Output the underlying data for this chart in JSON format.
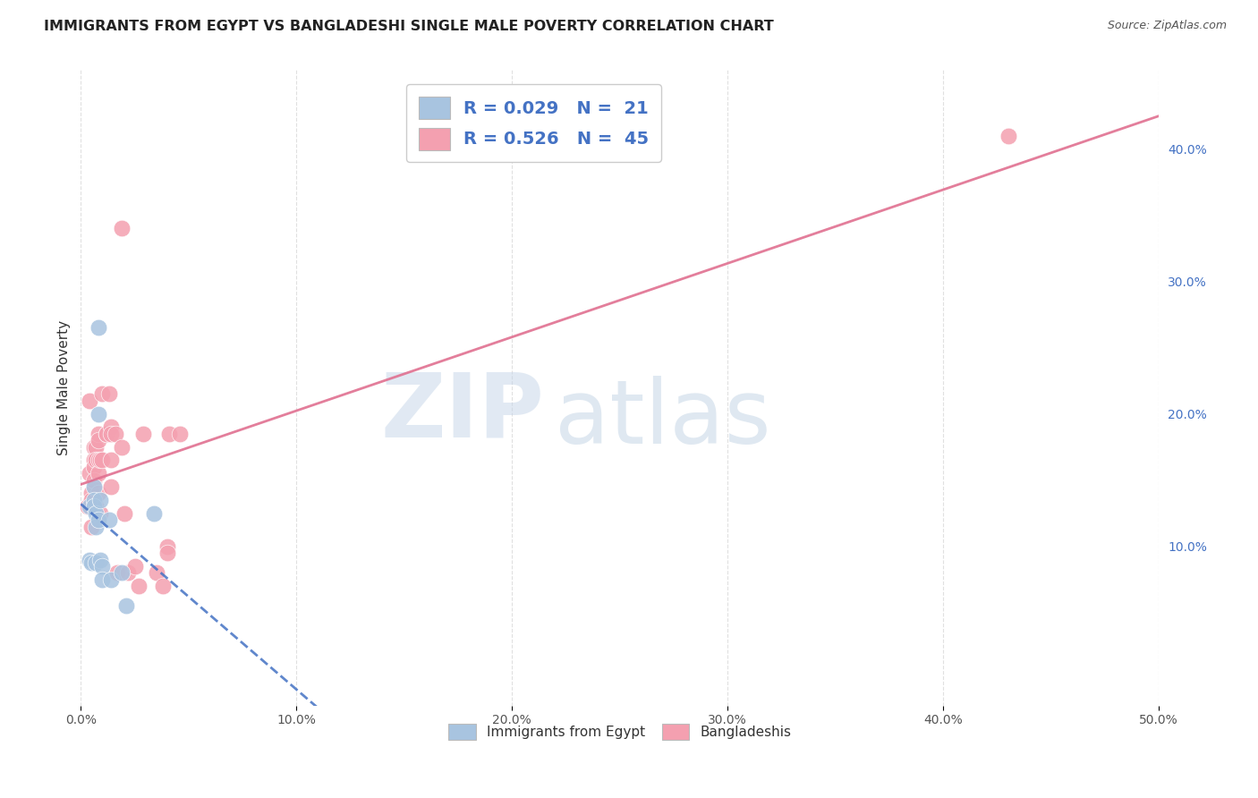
{
  "title": "IMMIGRANTS FROM EGYPT VS BANGLADESHI SINGLE MALE POVERTY CORRELATION CHART",
  "source": "Source: ZipAtlas.com",
  "ylabel": "Single Male Poverty",
  "xlim": [
    0.0,
    50.0
  ],
  "ylim": [
    -2.0,
    46.0
  ],
  "xticks": [
    0.0,
    10.0,
    20.0,
    30.0,
    40.0,
    50.0
  ],
  "xticklabels": [
    "0.0%",
    "10.0%",
    "20.0%",
    "30.0%",
    "40.0%",
    "50.0%"
  ],
  "yticks_right": [
    0.0,
    10.0,
    20.0,
    30.0,
    40.0
  ],
  "yticklabels_right": [
    "",
    "10.0%",
    "20.0%",
    "30.0%",
    "40.0%"
  ],
  "egypt_color": "#a8c4e0",
  "bangladesh_color": "#f4a0b0",
  "egypt_line_color": "#4472c4",
  "bangladesh_line_color": "#e07090",
  "watermark_zip": "ZIP",
  "watermark_atlas": "atlas",
  "background_color": "#ffffff",
  "grid_color": "#dddddd",
  "egypt_x": [
    0.4,
    0.4,
    0.5,
    0.6,
    0.6,
    0.6,
    0.7,
    0.7,
    0.7,
    0.8,
    0.8,
    0.8,
    0.9,
    0.9,
    1.0,
    1.0,
    1.3,
    1.4,
    1.9,
    2.1,
    3.4
  ],
  "egypt_y": [
    13.0,
    9.0,
    8.8,
    14.5,
    13.5,
    13.0,
    12.5,
    11.5,
    8.8,
    26.5,
    20.0,
    12.0,
    13.5,
    9.0,
    8.5,
    7.5,
    12.0,
    7.5,
    8.0,
    5.5,
    12.5
  ],
  "bangladesh_x": [
    0.3,
    0.4,
    0.4,
    0.5,
    0.5,
    0.5,
    0.6,
    0.6,
    0.6,
    0.6,
    0.7,
    0.7,
    0.7,
    0.8,
    0.8,
    0.8,
    0.8,
    0.8,
    0.9,
    0.9,
    1.0,
    1.0,
    1.2,
    1.2,
    1.3,
    1.4,
    1.4,
    1.4,
    1.4,
    1.6,
    1.7,
    1.9,
    1.9,
    2.0,
    2.2,
    2.5,
    2.7,
    2.9,
    3.5,
    3.8,
    4.0,
    4.0,
    4.1,
    4.6,
    43.0
  ],
  "bangladesh_y": [
    13.0,
    21.0,
    15.5,
    14.0,
    13.5,
    11.5,
    17.5,
    16.5,
    16.0,
    15.0,
    17.5,
    16.5,
    13.0,
    18.5,
    18.0,
    16.5,
    15.5,
    14.0,
    16.5,
    12.5,
    21.5,
    16.5,
    18.5,
    18.5,
    21.5,
    19.0,
    18.5,
    16.5,
    14.5,
    18.5,
    8.0,
    34.0,
    17.5,
    12.5,
    8.0,
    8.5,
    7.0,
    18.5,
    8.0,
    7.0,
    10.0,
    9.5,
    18.5,
    18.5,
    41.0
  ]
}
